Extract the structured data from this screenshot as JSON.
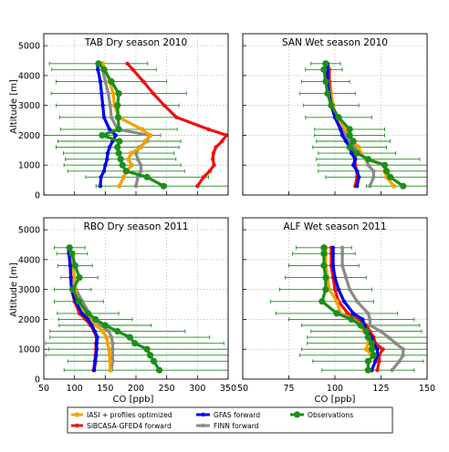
{
  "figure": {
    "y_axis_label": "Altitude [m]",
    "x_axis_label": "CO [ppb]"
  },
  "legend": {
    "items": [
      {
        "key": "iasi",
        "label": "IASI + profiles optimized",
        "color": "#f4a300"
      },
      {
        "key": "gfas",
        "label": "GFAS forward",
        "color": "#0000ee"
      },
      {
        "key": "obs",
        "label": "Observations",
        "color": "#1a8f1a"
      },
      {
        "key": "sib",
        "label": "SiBCASA-GFED4 forward",
        "color": "#ee1111"
      },
      {
        "key": "finn",
        "label": "FINN forward",
        "color": "#8a8a8a"
      }
    ]
  },
  "chart_data": [
    {
      "type": "line",
      "title": "TAB Dry season 2010",
      "xlim": [
        50,
        350
      ],
      "ylim": [
        0,
        5400
      ],
      "xticks": [
        "50",
        "100",
        "150",
        "200",
        "250",
        "300",
        "350"
      ],
      "yticks": [
        "0",
        "1000",
        "2000",
        "3000",
        "4000",
        "5000"
      ],
      "grid": true,
      "altitudes": [
        4400,
        4200,
        3800,
        3400,
        3000,
        2600,
        2200,
        2000,
        1800,
        1600,
        1400,
        1200,
        1000,
        800,
        600,
        300
      ],
      "series": [
        {
          "key": "sib",
          "values": [
            186,
            195,
            212,
            228,
            246,
            266,
            318,
            347,
            340,
            330,
            326,
            325,
            327,
            320,
            310,
            300
          ]
        },
        {
          "key": "finn",
          "values": [
            143,
            146,
            150,
            155,
            158,
            160,
            170,
            222,
            218,
            205,
            200,
            203,
            208,
            208,
            203,
            200
          ]
        },
        {
          "key": "iasi",
          "values": [
            146,
            150,
            157,
            163,
            165,
            172,
            210,
            223,
            215,
            208,
            192,
            188,
            193,
            185,
            180,
            173
          ]
        },
        {
          "key": "gfas",
          "values": [
            137,
            138,
            142,
            144,
            146,
            148,
            157,
            167,
            162,
            157,
            154,
            153,
            150,
            148,
            143,
            142
          ]
        },
        {
          "key": "obs",
          "values": [
            139,
            148,
            160,
            172,
            170,
            171,
            172,
            145,
            173,
            170,
            172,
            175,
            178,
            184,
            218,
            245
          ]
        }
      ],
      "obs_errors": [
        80,
        85,
        90,
        110,
        100,
        95,
        95,
        95,
        100,
        100,
        90,
        90,
        95,
        95,
        100,
        110
      ]
    },
    {
      "type": "line",
      "title": "SAN Wet season 2010",
      "xlim": [
        50,
        150
      ],
      "ylim": [
        0,
        5400
      ],
      "xticks": [
        "50",
        "75",
        "100",
        "125",
        "150"
      ],
      "yticks": [
        "0",
        "1000",
        "2000",
        "3000",
        "4000",
        "5000"
      ],
      "grid": true,
      "altitudes": [
        4400,
        4200,
        3800,
        3400,
        3000,
        2600,
        2200,
        2000,
        1800,
        1600,
        1400,
        1200,
        1000,
        800,
        600,
        300
      ],
      "series": [
        {
          "key": "sib",
          "values": [
            96,
            97,
            97,
            98,
            98,
            100,
            104,
            105,
            108,
            110,
            111,
            111,
            111,
            112,
            112,
            111
          ]
        },
        {
          "key": "finn",
          "values": [
            95,
            96,
            95,
            96,
            98,
            101,
            105,
            106,
            108,
            111,
            113,
            117,
            118,
            121,
            121,
            119
          ]
        },
        {
          "key": "iasi",
          "values": [
            95,
            96,
            96,
            98,
            99,
            101,
            106,
            108,
            110,
            113,
            114,
            117,
            127,
            127,
            128,
            132
          ]
        },
        {
          "key": "gfas",
          "values": [
            96,
            96,
            96,
            97,
            98,
            100,
            103,
            104,
            106,
            108,
            109,
            111,
            110,
            112,
            113,
            112
          ]
        },
        {
          "key": "obs",
          "values": [
            95,
            94,
            95,
            96,
            98,
            102,
            108,
            108,
            110,
            108,
            112,
            118,
            127,
            128,
            130,
            137
          ]
        }
      ],
      "obs_errors": [
        8,
        10,
        13,
        15,
        15,
        18,
        19,
        19,
        20,
        20,
        21,
        28,
        36,
        37,
        35,
        20
      ]
    },
    {
      "type": "line",
      "title": "RBO Dry season 2011",
      "xlim": [
        50,
        350
      ],
      "ylim": [
        0,
        5400
      ],
      "xticks": [
        "50",
        "100",
        "150",
        "200",
        "250",
        "300",
        "350"
      ],
      "yticks": [
        "0",
        "1000",
        "2000",
        "3000",
        "4000",
        "5000"
      ],
      "grid": true,
      "altitudes": [
        4400,
        4200,
        3800,
        3400,
        3000,
        2600,
        2200,
        2000,
        1800,
        1600,
        1400,
        1200,
        1000,
        800,
        600,
        300
      ],
      "series": [
        {
          "key": "sib",
          "values": [
            90,
            91,
            93,
            94,
            95,
            100,
            108,
            118,
            126,
            132,
            136,
            135,
            135,
            134,
            133,
            131
          ]
        },
        {
          "key": "finn",
          "values": [
            92,
            94,
            97,
            100,
            102,
            113,
            124,
            133,
            143,
            156,
            160,
            162,
            162,
            162,
            162,
            160
          ]
        },
        {
          "key": "iasi",
          "values": [
            91,
            93,
            96,
            99,
            100,
            107,
            118,
            126,
            135,
            146,
            152,
            154,
            156,
            157,
            158,
            158
          ]
        },
        {
          "key": "gfas",
          "values": [
            90,
            91,
            93,
            94,
            95,
            102,
            112,
            122,
            128,
            133,
            137,
            136,
            136,
            135,
            134,
            132
          ]
        },
        {
          "key": "obs",
          "values": [
            92,
            96,
            101,
            108,
            97,
            107,
            122,
            134,
            150,
            170,
            190,
            198,
            218,
            223,
            229,
            238
          ]
        }
      ],
      "obs_errors": [
        25,
        25,
        28,
        30,
        30,
        40,
        50,
        60,
        75,
        110,
        130,
        145,
        160,
        170,
        140,
        155
      ]
    },
    {
      "type": "line",
      "title": "ALF Wet season 2011",
      "xlim": [
        50,
        150
      ],
      "ylim": [
        0,
        5400
      ],
      "xticks": [
        "50",
        "75",
        "100",
        "125",
        "150"
      ],
      "yticks": [
        "0",
        "1000",
        "2000",
        "3000",
        "4000",
        "5000"
      ],
      "grid": true,
      "altitudes": [
        4400,
        4200,
        3800,
        3400,
        3000,
        2600,
        2200,
        2000,
        1800,
        1600,
        1400,
        1200,
        1000,
        800,
        600,
        300
      ],
      "series": [
        {
          "key": "sib",
          "values": [
            98,
            98,
            98,
            99,
            100,
            102,
            107,
            113,
            117,
            119,
            121,
            122,
            126,
            124,
            124,
            123
          ]
        },
        {
          "key": "finn",
          "values": [
            104,
            104,
            104,
            106,
            108,
            112,
            118,
            119,
            119,
            125,
            129,
            133,
            137,
            137,
            135,
            131
          ]
        },
        {
          "key": "iasi",
          "values": [
            95,
            95,
            95,
            96,
            97,
            101,
            103,
            110,
            114,
            116,
            118,
            118,
            117,
            120,
            122,
            120
          ]
        },
        {
          "key": "gfas",
          "values": [
            99,
            99,
            99,
            100,
            102,
            105,
            110,
            115,
            116,
            117,
            120,
            121,
            123,
            123,
            122,
            120
          ]
        },
        {
          "key": "obs",
          "values": [
            94,
            94,
            94,
            95,
            95,
            93,
            101,
            109,
            114,
            117,
            118,
            120,
            120,
            121,
            118,
            118
          ]
        }
      ],
      "obs_errors": [
        15,
        17,
        19,
        22,
        25,
        28,
        33,
        34,
        32,
        30,
        33,
        35,
        38,
        40,
        30,
        25
      ]
    }
  ]
}
